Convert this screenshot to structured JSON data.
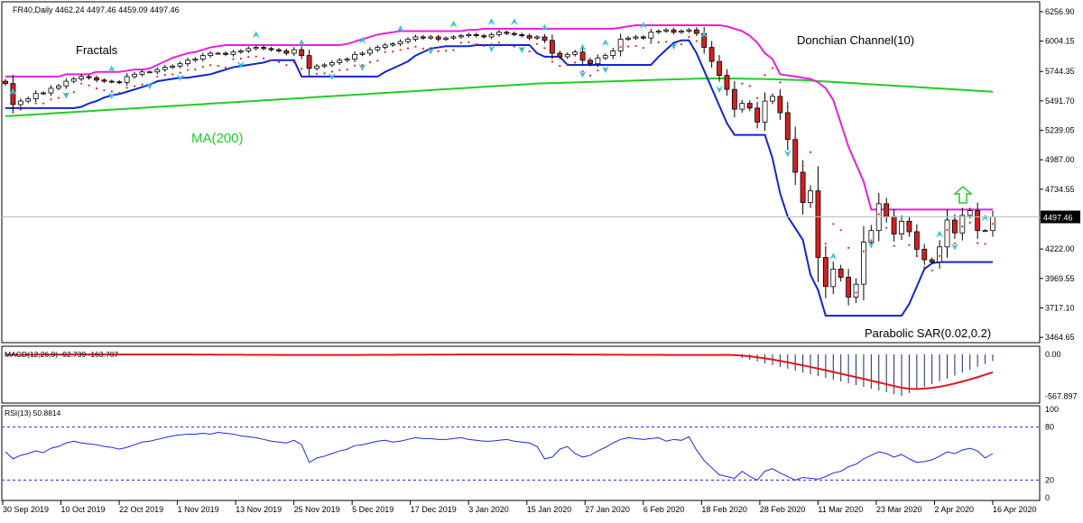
{
  "symbol_header": "FR40,Daily  4462.24 4497.46 4459.09 4497.46",
  "labels": {
    "fractals": "Fractals",
    "donchian": "Donchian Channel(10)",
    "ma": "MA(200)",
    "sar": "Parabolic SAR(0.02,0.2)"
  },
  "colors": {
    "bull_candle": "#ffffff",
    "bear_candle": "#d42020",
    "candle_outline": "#000000",
    "donchian_upper": "#e81ee0",
    "donchian_lower": "#1024d8",
    "ma200": "#22cc22",
    "sar": "#e02020",
    "fractal": "#33c4d6",
    "macd_hist": "#1a2a6a",
    "macd_signal": "#e01818",
    "rsi_line": "#1a2ad8",
    "arrow_up": "#22cc22"
  },
  "icons": {
    "fractal_up": "fractal-up-arrow-icon",
    "fractal_down": "fractal-down-arrow-icon",
    "signal_arrow": "green-up-arrow-icon"
  },
  "chart_data": [
    {
      "type": "candlestick",
      "title": "FR40,Daily",
      "last_price_label": "4497.46",
      "y_ticks": [
        "6256.90",
        "6004.15",
        "5744.35",
        "5491.70",
        "5239.05",
        "4987.00",
        "4734.55",
        "4497.46",
        "4222.00",
        "3969.55",
        "3717.10",
        "3464.65"
      ],
      "x_ticks": [
        "30 Sep 2019",
        "10 Oct 2019",
        "22 Oct 2019",
        "1 Nov 2019",
        "13 Nov 2019",
        "25 Nov 2019",
        "5 Dec 2019",
        "17 Dec 2019",
        "3 Jan 2020",
        "15 Jan 2020",
        "27 Jan 2020",
        "6 Feb 2020",
        "18 Feb 2020",
        "28 Feb 2020",
        "11 Mar 2020",
        "23 Mar 2020",
        "2 Apr 2020",
        "16 Apr 2020"
      ],
      "ylim": [
        3450,
        6310
      ],
      "close": [
        5640,
        5460,
        5490,
        5510,
        5555,
        5560,
        5600,
        5620,
        5660,
        5680,
        5700,
        5690,
        5670,
        5660,
        5655,
        5650,
        5700,
        5720,
        5740,
        5740,
        5760,
        5780,
        5790,
        5810,
        5840,
        5850,
        5880,
        5900,
        5900,
        5890,
        5910,
        5920,
        5940,
        5950,
        5940,
        5930,
        5920,
        5900,
        5930,
        5880,
        5770,
        5790,
        5800,
        5820,
        5840,
        5850,
        5890,
        5900,
        5930,
        5950,
        5970,
        5980,
        6000,
        6020,
        6040,
        6030,
        6040,
        6020,
        6030,
        6040,
        6050,
        6060,
        6050,
        6040,
        6060,
        6080,
        6070,
        6060,
        6050,
        6030,
        6040,
        6010,
        5900,
        5870,
        5890,
        5910,
        5840,
        5810,
        5860,
        5880,
        5920,
        6020,
        6030,
        6040,
        6030,
        6080,
        6090,
        6100,
        6080,
        6090,
        6100,
        6070,
        5950,
        5830,
        5710,
        5590,
        5420,
        5470,
        5430,
        5310,
        5490,
        5530,
        5390,
        5160,
        4880,
        4620,
        4720,
        4150,
        3900,
        4050,
        3980,
        3810,
        3920,
        4280,
        4380,
        4610,
        4500,
        4350,
        4460,
        4370,
        4220,
        4130,
        4110,
        4240,
        4470,
        4360,
        4510,
        4550,
        4380,
        4380,
        4497
      ],
      "sar_start_index": 0,
      "donchian_upper": [
        5700,
        5700,
        5700,
        5700,
        5700,
        5700,
        5700,
        5700,
        5720,
        5720,
        5720,
        5720,
        5740,
        5740,
        5740,
        5740,
        5750,
        5760,
        5760,
        5770,
        5800,
        5830,
        5860,
        5880,
        5900,
        5910,
        5930,
        5950,
        5960,
        5970,
        5970,
        5970,
        5970,
        5970,
        5970,
        5970,
        5970,
        5970,
        5970,
        5970,
        5970,
        5970,
        5970,
        5970,
        5970,
        5980,
        6000,
        6020,
        6040,
        6060,
        6070,
        6080,
        6090,
        6090,
        6090,
        6090,
        6090,
        6090,
        6090,
        6090,
        6090,
        6100,
        6100,
        6110,
        6110,
        6110,
        6110,
        6110,
        6110,
        6110,
        6110,
        6110,
        6110,
        6110,
        6110,
        6110,
        6110,
        6110,
        6110,
        6110,
        6110,
        6120,
        6130,
        6140,
        6140,
        6140,
        6140,
        6140,
        6140,
        6140,
        6140,
        6140,
        6140,
        6140,
        6140,
        6130,
        6110,
        6090,
        6050,
        5990,
        5900,
        5850,
        5720,
        5710,
        5700,
        5690,
        5680,
        5650,
        5600,
        5500,
        5300,
        5100,
        4950,
        4800,
        4560,
        4560,
        4560,
        4560,
        4560,
        4560,
        4560,
        4560,
        4560,
        4560,
        4560,
        4560,
        4560,
        4560,
        4560,
        4560,
        4560
      ],
      "donchian_lower": [
        5430,
        5430,
        5430,
        5430,
        5430,
        5430,
        5430,
        5430,
        5430,
        5430,
        5440,
        5470,
        5490,
        5520,
        5540,
        5550,
        5570,
        5590,
        5610,
        5630,
        5660,
        5670,
        5680,
        5690,
        5690,
        5700,
        5710,
        5720,
        5740,
        5760,
        5780,
        5790,
        5800,
        5810,
        5820,
        5840,
        5840,
        5840,
        5840,
        5700,
        5700,
        5700,
        5700,
        5700,
        5700,
        5700,
        5700,
        5700,
        5700,
        5700,
        5740,
        5770,
        5800,
        5830,
        5880,
        5910,
        5940,
        5950,
        5960,
        5960,
        5960,
        5960,
        5970,
        5970,
        5970,
        5970,
        5970,
        5970,
        5970,
        5970,
        5900,
        5870,
        5870,
        5870,
        5800,
        5800,
        5800,
        5800,
        5800,
        5800,
        5800,
        5800,
        5800,
        5800,
        5800,
        5800,
        5870,
        5930,
        5990,
        6010,
        6010,
        5900,
        5750,
        5600,
        5450,
        5300,
        5200,
        5200,
        5200,
        5200,
        5200,
        5000,
        4700,
        4500,
        4400,
        4300,
        4000,
        3870,
        3650,
        3650,
        3650,
        3650,
        3650,
        3650,
        3650,
        3650,
        3650,
        3650,
        3650,
        3750,
        3900,
        4050,
        4100,
        4110,
        4110,
        4110,
        4110,
        4110,
        4110,
        4110,
        4110
      ],
      "ma200": [
        5360,
        5364,
        5368,
        5372,
        5376,
        5380,
        5384,
        5388,
        5392,
        5396,
        5400,
        5404,
        5408,
        5412,
        5416,
        5420,
        5424,
        5428,
        5432,
        5436,
        5440,
        5444,
        5448,
        5452,
        5456,
        5460,
        5464,
        5468,
        5472,
        5476,
        5480,
        5484,
        5488,
        5492,
        5496,
        5500,
        5504,
        5508,
        5512,
        5516,
        5520,
        5524,
        5528,
        5532,
        5536,
        5540,
        5544,
        5548,
        5552,
        5556,
        5560,
        5564,
        5568,
        5572,
        5576,
        5580,
        5584,
        5588,
        5592,
        5596,
        5600,
        5604,
        5608,
        5612,
        5616,
        5620,
        5624,
        5628,
        5632,
        5636,
        5640,
        5642,
        5644,
        5646,
        5648,
        5650,
        5652,
        5654,
        5656,
        5658,
        5660,
        5662,
        5664,
        5666,
        5668,
        5670,
        5672,
        5674,
        5676,
        5678,
        5680,
        5682,
        5683,
        5684,
        5684,
        5684,
        5683,
        5682,
        5681,
        5680,
        5679,
        5677,
        5675,
        5673,
        5671,
        5669,
        5666,
        5662,
        5658,
        5654,
        5650,
        5646,
        5642,
        5638,
        5634,
        5630,
        5626,
        5622,
        5618,
        5614,
        5610,
        5606,
        5602,
        5598,
        5594,
        5590,
        5586,
        5582,
        5578,
        5574,
        5570
      ],
      "fractal_up_indices": [
        1,
        14,
        33,
        39,
        47,
        52,
        59,
        64,
        67,
        71,
        76,
        79,
        84,
        92,
        109,
        123,
        129
      ],
      "fractal_down_indices": [
        8,
        14,
        19,
        23,
        31,
        43,
        47,
        56,
        64,
        68,
        76,
        79,
        88,
        94,
        103,
        114,
        125
      ],
      "macd": {
        "label": "MACD(12,26,9) -92.739 -163.707",
        "y_ticks": [
          "0.00",
          "-567.897"
        ],
        "ylim": [
          -620,
          60
        ]
      },
      "rsi": {
        "label": "RSI(13) 50.8814",
        "y_ticks": [
          "100",
          "80",
          "20",
          "0"
        ],
        "ylim": [
          0,
          100
        ],
        "values": [
          52,
          44,
          48,
          50,
          53,
          51,
          56,
          58,
          62,
          64,
          62,
          61,
          60,
          58,
          57,
          55,
          57,
          60,
          63,
          64,
          66,
          68,
          70,
          71,
          72,
          72,
          73,
          72,
          74,
          73,
          72,
          70,
          69,
          68,
          66,
          64,
          63,
          62,
          65,
          60,
          40,
          45,
          47,
          50,
          53,
          55,
          59,
          60,
          62,
          64,
          65,
          63,
          64,
          66,
          68,
          67,
          67,
          66,
          66,
          67,
          68,
          66,
          65,
          64,
          64,
          65,
          66,
          64,
          63,
          62,
          58,
          44,
          46,
          55,
          58,
          50,
          46,
          48,
          53,
          57,
          62,
          66,
          68,
          67,
          66,
          67,
          68,
          64,
          66,
          65,
          69,
          54,
          42,
          34,
          26,
          24,
          22,
          30,
          24,
          20,
          30,
          33,
          28,
          24,
          20,
          23,
          22,
          21,
          24,
          28,
          30,
          35,
          38,
          44,
          48,
          52,
          50,
          46,
          49,
          44,
          40,
          41,
          43,
          47,
          52,
          50,
          54,
          56,
          53,
          45,
          50
        ]
      }
    }
  ]
}
